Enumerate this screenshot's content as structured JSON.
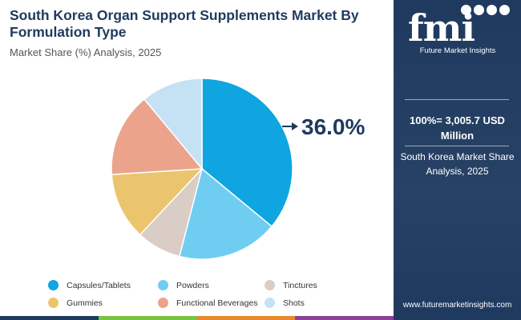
{
  "header": {
    "title": "South Korea Organ Support Supplements Market By Formulation Type",
    "subtitle": "Market Share (%) Analysis, 2025"
  },
  "chart_data": {
    "type": "pie",
    "categories": [
      "Capsules/Tablets",
      "Powders",
      "Tinctures",
      "Gummies",
      "Functional Beverages",
      "Shots"
    ],
    "values": [
      36.0,
      18.0,
      8.0,
      12.0,
      15.0,
      11.0
    ],
    "colors": [
      "#0ea5e0",
      "#6fcdf2",
      "#d9cdc6",
      "#ebc56d",
      "#eba38b",
      "#c5e1f4"
    ],
    "highlight": {
      "category": "Capsules/Tablets",
      "label": "36.0%"
    },
    "legend_position": "bottom"
  },
  "sidebar": {
    "logo_text": "fmi",
    "logo_subtitle": "Future Market Insights",
    "total_label": "100%= 3,005.7 USD Million",
    "subtitle": "South Korea Market Share Analysis, 2025",
    "website": "www.futuremarketinsights.com"
  },
  "colors": {
    "navy": "#1f3a5f",
    "bar": [
      "#1f3a5f",
      "#7cc242",
      "#e6892c",
      "#8e3f97"
    ]
  }
}
